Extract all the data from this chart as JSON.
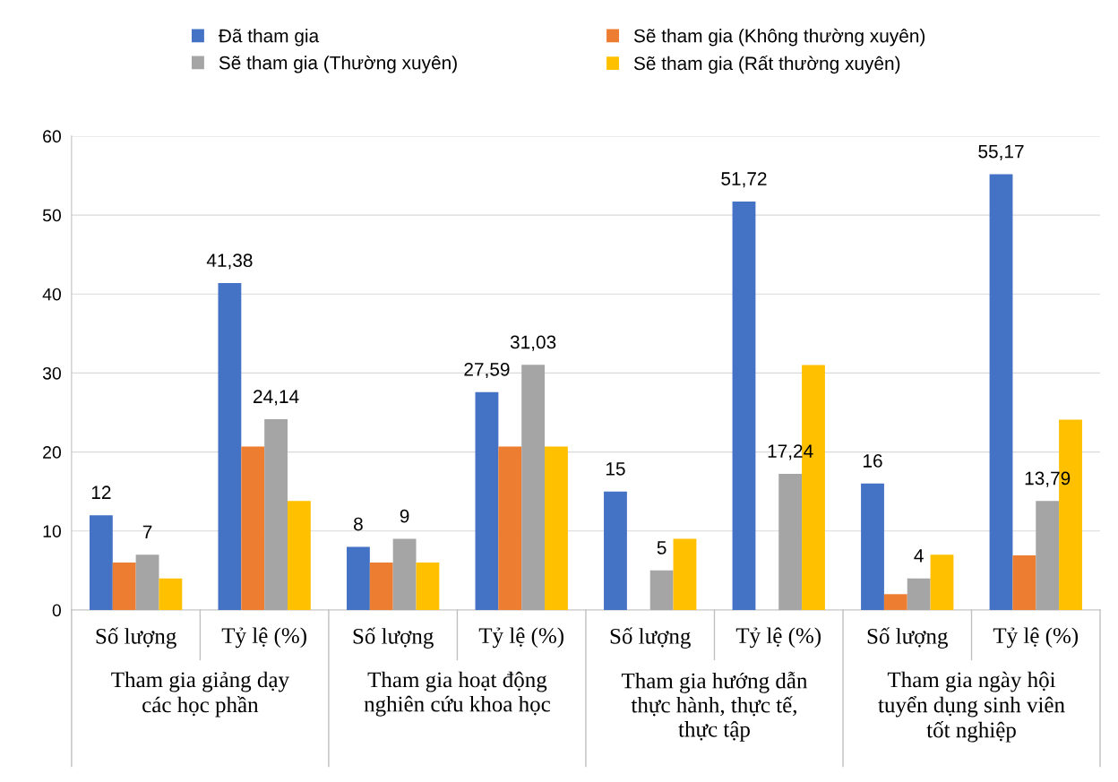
{
  "chart_data": {
    "type": "bar",
    "categories": [
      "Số lượng",
      "Tỷ lệ (%)",
      "Số lượng",
      "Tỷ lệ (%)",
      "Số lượng",
      "Tỷ lệ (%)",
      "Số lượng",
      "Tỷ lệ (%)"
    ],
    "series": [
      {
        "name": "Đã tham gia",
        "color": "#4472c4",
        "values": [
          12,
          41.38,
          8,
          27.59,
          15,
          51.72,
          16,
          55.17
        ],
        "value_labels": [
          "12",
          "41,38",
          "8",
          "27,59",
          "15",
          "51,72",
          "16",
          "55,17"
        ]
      },
      {
        "name": "Sẽ tham gia (Không thường xuyên)",
        "color": "#ed7d31",
        "values": [
          6,
          20.7,
          6,
          20.7,
          0,
          0,
          2,
          6.9
        ]
      },
      {
        "name": "Sẽ tham gia (Thường xuyên)",
        "color": "#a5a5a5",
        "values": [
          7,
          24.14,
          9,
          31.03,
          5,
          17.24,
          4,
          13.79
        ],
        "value_labels": [
          "7",
          "24,14",
          "9",
          "31,03",
          "5",
          "17,24",
          "4",
          "13,79"
        ]
      },
      {
        "name": "Sẽ tham gia (Rất thường xuyên)",
        "color": "#ffc000",
        "values": [
          4,
          13.8,
          6,
          20.7,
          9,
          31,
          7,
          24.1
        ]
      }
    ],
    "annotations": [
      "Tham gia giảng dạy\ncác học phần",
      "Tham gia hoạt động\nnghiên cứu khoa học",
      "Tham gia hướng dẫn\nthực hành, thực tế,\nthực tập",
      "Tham gia ngày hội\ntuyển dụng sinh viên\ntốt nghiệp"
    ],
    "ylim": [
      0,
      60
    ],
    "yticks": [
      0,
      10,
      20,
      30,
      40,
      50,
      60
    ],
    "grid": "y",
    "legend": "top"
  }
}
